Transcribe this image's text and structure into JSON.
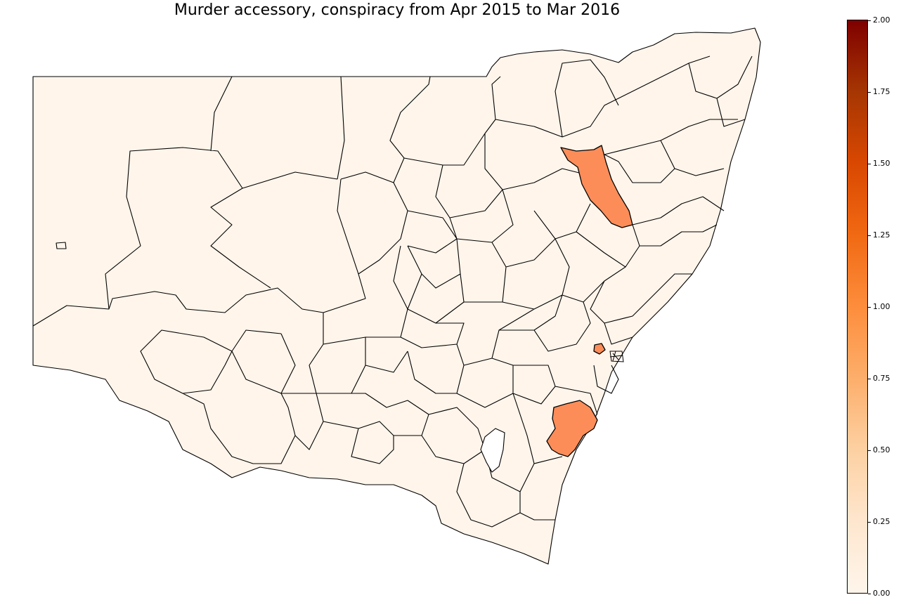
{
  "title": "Murder accessory, conspiracy from Apr 2015 to Mar 2016",
  "colorbar": {
    "min": 0,
    "max": 2,
    "ticks": [
      "0.00",
      "0.25",
      "0.50",
      "0.75",
      "1.00",
      "1.25",
      "1.50",
      "1.75",
      "2.00"
    ],
    "colormap": "Oranges/Reds",
    "colors": {
      "zero": "#fff5eb",
      "one": "#fc8d59",
      "two": "#7f0000",
      "border": "#000000",
      "no_data": "#ffffff"
    }
  },
  "map": {
    "region": "New South Wales local government areas",
    "highlighted_areas_value": 1.0,
    "highlighted_areas": [
      "northern-inland-lga",
      "sydney-west-lga",
      "south-coast-lga"
    ]
  }
}
